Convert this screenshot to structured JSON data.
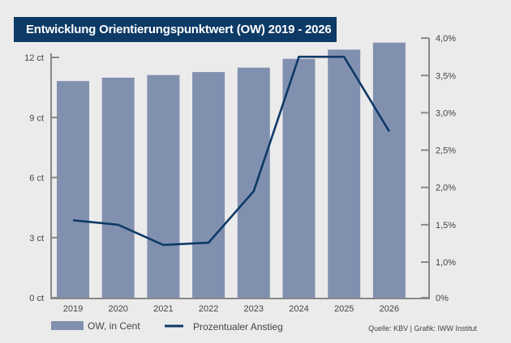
{
  "chart_data": {
    "type": "bar+line",
    "title": "Entwicklung Orientierungspunktwert (OW) 2019 - 2026",
    "categories": [
      "2019",
      "2020",
      "2021",
      "2022",
      "2023",
      "2024",
      "2025",
      "2026"
    ],
    "series": [
      {
        "name": "OW, in Cent",
        "type": "bar",
        "axis": "left",
        "color": "#8290b0",
        "values": [
          10.82,
          10.99,
          11.12,
          11.27,
          11.49,
          11.93,
          12.39,
          12.74
        ]
      },
      {
        "name": "Prozentualer Anstieg",
        "type": "line",
        "axis": "right",
        "color": "#0d3a66",
        "values": [
          1.56,
          1.5,
          1.23,
          1.26,
          1.95,
          3.75,
          3.75,
          2.75
        ]
      }
    ],
    "left_axis": {
      "ticks": [
        0,
        3,
        6,
        9,
        12
      ],
      "tick_labels": [
        "0 ct",
        "3 ct",
        "6 ct",
        "9 ct",
        "12 ct"
      ]
    },
    "right_axis": {
      "ticks": [
        0,
        1.0,
        1.5,
        2.0,
        2.5,
        3.0,
        3.5,
        4.0
      ],
      "tick_labels": [
        "0%",
        "1,0%",
        "1,5%",
        "2,0%",
        "2,5%",
        "3,0%",
        "3,5%",
        "4,0%"
      ],
      "axis_break": "between 0% and 1,0%"
    },
    "grid": false,
    "legend": "bottom-left",
    "source": "Quelle: KBV | Grafik: IWW Institut"
  }
}
